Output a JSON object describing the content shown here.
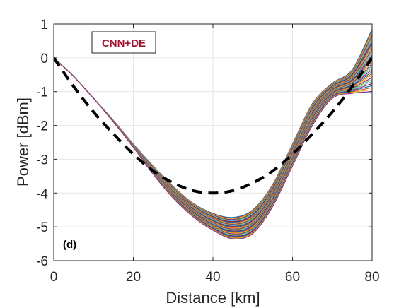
{
  "chart_data": {
    "type": "line",
    "title": "",
    "xlabel": "Distance [km]",
    "ylabel": "Power [dBm]",
    "xlim": [
      0,
      80
    ],
    "ylim": [
      -6,
      1
    ],
    "xticks": [
      0,
      20,
      40,
      60,
      80
    ],
    "yticks": [
      -6,
      -5,
      -4,
      -3,
      -2,
      -1,
      0,
      1
    ],
    "grid": true,
    "legend_box": "CNN+DE",
    "panel_label": "(d)",
    "colors": {
      "legend_text": "#A2142F",
      "reference_line": "#000000",
      "grid": "#e6e6e6",
      "axes": "#262626"
    },
    "reference_curve": {
      "style": "dashed",
      "x": [
        0,
        5,
        10,
        15,
        20,
        25,
        30,
        35,
        40,
        45,
        50,
        55,
        60,
        65,
        70,
        75,
        80
      ],
      "y": [
        0,
        -0.85,
        -1.6,
        -2.25,
        -2.85,
        -3.35,
        -3.7,
        -3.93,
        -4.0,
        -3.93,
        -3.7,
        -3.35,
        -2.85,
        -2.25,
        -1.6,
        -0.85,
        0
      ]
    },
    "ensemble": {
      "count": 32,
      "x": [
        0,
        5,
        10,
        15,
        20,
        25,
        30,
        35,
        40,
        45,
        50,
        55,
        60,
        65,
        70,
        75,
        80
      ],
      "upper_y": [
        0,
        -0.55,
        -1.2,
        -1.85,
        -2.55,
        -3.2,
        -3.8,
        -4.3,
        -4.6,
        -4.72,
        -4.5,
        -3.75,
        -2.55,
        -1.35,
        -0.75,
        -0.35,
        0.85
      ],
      "lower_y": [
        0,
        -0.55,
        -1.2,
        -1.9,
        -2.65,
        -3.45,
        -4.15,
        -4.7,
        -5.1,
        -5.35,
        -5.2,
        -4.4,
        -3.2,
        -2.0,
        -1.2,
        -1.05,
        -1.0
      ],
      "colors": [
        "#0072BD",
        "#D95319",
        "#EDB120",
        "#7E2F8E",
        "#77AC30",
        "#4DBEEE",
        "#A2142F"
      ]
    }
  }
}
